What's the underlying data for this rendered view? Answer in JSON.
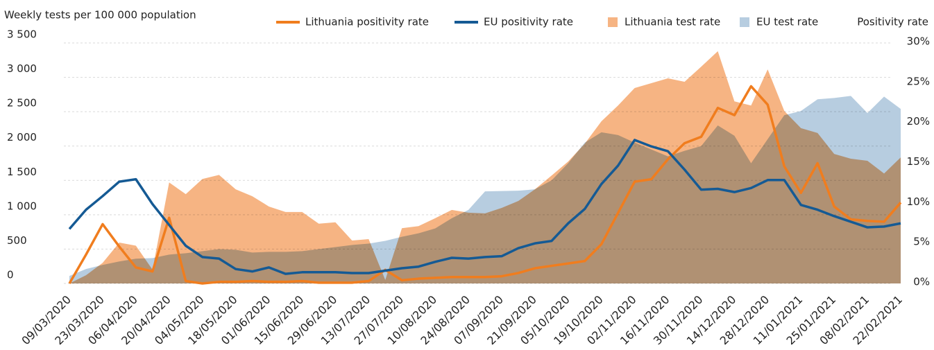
{
  "chart_data": {
    "type": "combo",
    "title": "Weekly tests per 100 000 population",
    "y2_title": "Positivity rate",
    "categories": [
      "09/03/2020",
      null,
      "23/03/2020",
      null,
      "06/04/2020",
      null,
      "20/04/2020",
      null,
      "04/05/2020",
      null,
      "18/05/2020",
      null,
      "01/06/2020",
      null,
      "15/06/2020",
      null,
      "29/06/2020",
      null,
      "13/07/2020",
      null,
      "27/07/2020",
      null,
      "10/08/2020",
      null,
      "24/08/2020",
      null,
      "07/09/2020",
      null,
      "21/09/2020",
      null,
      "05/10/2020",
      null,
      "19/10/2020",
      null,
      "02/11/2020",
      null,
      "16/11/2020",
      null,
      "30/11/2020",
      null,
      "14/12/2020",
      null,
      "28/12/2020",
      null,
      "11/01/2021",
      null,
      "25/01/2021",
      null,
      "08/02/2021",
      null,
      "22/02/2021"
    ],
    "series": [
      {
        "name": "Lithuania positivity rate",
        "kind": "line",
        "axis": "y2",
        "color": "#f07d1e",
        "values": [
          0,
          3.6,
          7.4,
          4.6,
          2.0,
          1.5,
          8.2,
          0.3,
          0,
          0.2,
          0.2,
          0.3,
          0.2,
          0.2,
          0.3,
          0.1,
          0.1,
          0.1,
          0.3,
          1.7,
          0.4,
          0.6,
          0.7,
          0.8,
          0.8,
          0.8,
          0.9,
          1.3,
          1.9,
          2.2,
          2.5,
          2.8,
          4.9,
          8.8,
          12.7,
          13.0,
          15.5,
          17.5,
          18.3,
          21.9,
          21.0,
          24.6,
          22.3,
          14.6,
          11.3,
          15.0,
          9.6,
          8.0,
          7.8,
          7.7,
          10.1
        ]
      },
      {
        "name": "EU positivity rate",
        "kind": "line",
        "axis": "y2",
        "color": "#155a94",
        "values": [
          6.8,
          9.2,
          10.9,
          12.7,
          13.0,
          9.9,
          7.3,
          4.7,
          3.3,
          3.1,
          1.8,
          1.5,
          2.0,
          1.2,
          1.4,
          1.4,
          1.4,
          1.3,
          1.3,
          1.6,
          1.9,
          2.1,
          2.7,
          3.2,
          3.1,
          3.3,
          3.4,
          4.4,
          5.0,
          5.3,
          7.5,
          9.3,
          12.4,
          14.7,
          17.9,
          17.1,
          16.5,
          14.2,
          11.7,
          11.8,
          11.4,
          11.9,
          12.9,
          12.9,
          9.8,
          9.2,
          8.4,
          7.7,
          7.0,
          7.1,
          7.5
        ]
      },
      {
        "name": "Lithuania test rate",
        "kind": "area",
        "axis": "y",
        "color": "#f6b483",
        "values": [
          0,
          120,
          300,
          595,
          550,
          200,
          1470,
          1300,
          1520,
          1580,
          1370,
          1270,
          1120,
          1040,
          1040,
          870,
          890,
          625,
          645,
          50,
          805,
          835,
          950,
          1070,
          1030,
          1020,
          1100,
          1200,
          1370,
          1570,
          1775,
          2035,
          2360,
          2590,
          2845,
          2915,
          2985,
          2935,
          3155,
          3380,
          2650,
          2590,
          3115,
          2510,
          2260,
          2190,
          1885,
          1815,
          1785,
          1600,
          1835
        ]
      },
      {
        "name": "EU test rate",
        "kind": "area",
        "axis": "y",
        "color": "#b7cde0",
        "values": [
          110,
          210,
          270,
          320,
          360,
          370,
          420,
          440,
          470,
          500,
          490,
          450,
          460,
          460,
          470,
          500,
          530,
          560,
          580,
          620,
          680,
          730,
          800,
          950,
          1070,
          1340,
          1345,
          1350,
          1370,
          1500,
          1750,
          2050,
          2200,
          2160,
          2050,
          1950,
          1850,
          1930,
          2000,
          2300,
          2150,
          1750,
          2100,
          2450,
          2510,
          2680,
          2700,
          2730,
          2480,
          2720,
          2540
        ]
      }
    ],
    "ylim": [
      0,
      3500
    ],
    "yticks": [
      0,
      500,
      {
        "value": 1000,
        "label": "1 000"
      },
      {
        "value": 1500,
        "label": "1 500"
      },
      {
        "value": 2000,
        "label": "2 000"
      },
      {
        "value": 2500,
        "label": "2 500"
      },
      {
        "value": 3000,
        "label": "3 000"
      },
      {
        "value": 3500,
        "label": "3 500"
      }
    ],
    "y2lim": [
      0,
      30
    ],
    "y2ticks": [
      {
        "value": 0,
        "label": "0%"
      },
      {
        "value": 5,
        "label": "5%"
      },
      {
        "value": 10,
        "label": "10%"
      },
      {
        "value": 15,
        "label": "15%"
      },
      {
        "value": 20,
        "label": "20%"
      },
      {
        "value": 25,
        "label": "25%"
      },
      {
        "value": 30,
        "label": "30%"
      }
    ],
    "grid": true
  }
}
